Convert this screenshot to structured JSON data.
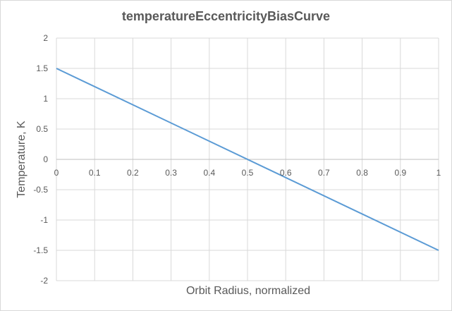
{
  "chart_data": {
    "type": "line",
    "title": "temperatureEccentricityBiasCurve",
    "xlabel": "Orbit Radius, normalized",
    "ylabel": "Temperature, K",
    "xlim": [
      0,
      1
    ],
    "ylim": [
      -2,
      2
    ],
    "x_ticks": [
      "0",
      "0.1",
      "0.2",
      "0.3",
      "0.4",
      "0.5",
      "0.6",
      "0.7",
      "0.8",
      "0.9",
      "1"
    ],
    "y_ticks": [
      "2",
      "1.5",
      "1",
      "0.5",
      "0",
      "-0.5",
      "-1",
      "-1.5",
      "-2"
    ],
    "grid": true,
    "series": [
      {
        "color": "#5b9bd5",
        "x": [
          0,
          1
        ],
        "y": [
          1.5,
          -1.5
        ]
      }
    ]
  }
}
